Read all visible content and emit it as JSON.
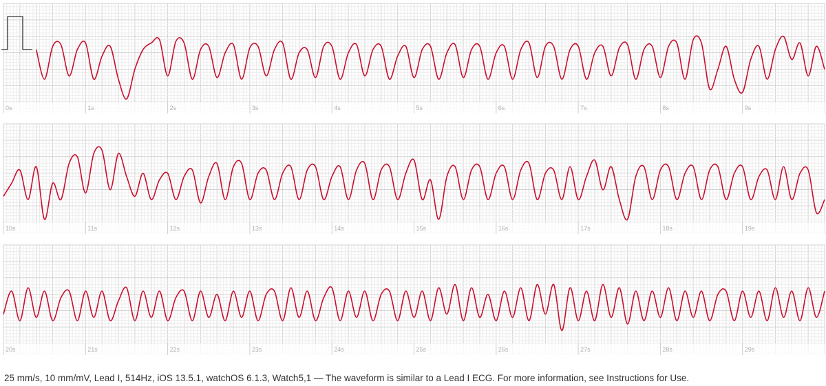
{
  "chart_data": [
    {
      "type": "line",
      "xlim": [
        0,
        10
      ],
      "ylim": [
        -1.9,
        1.4
      ],
      "color": "#c8102e",
      "xticks": [
        {
          "value": 0,
          "label": "0s"
        },
        {
          "value": 1,
          "label": "1s"
        },
        {
          "value": 2,
          "label": "2s"
        },
        {
          "value": 3,
          "label": "3s"
        },
        {
          "value": 4,
          "label": "4s"
        },
        {
          "value": 5,
          "label": "5s"
        },
        {
          "value": 6,
          "label": "6s"
        },
        {
          "value": 7,
          "label": "7s"
        },
        {
          "value": 8,
          "label": "8s"
        },
        {
          "value": 9,
          "label": "9s"
        }
      ],
      "values": [
        null,
        null,
        null,
        null,
        0.0,
        -0.9,
        0.1,
        0.15,
        -0.8,
        0.0,
        0.2,
        -0.9,
        -0.2,
        0.1,
        -0.9,
        -1.5,
        -0.6,
        0.0,
        0.2,
        0.3,
        -0.8,
        0.25,
        0.2,
        -0.9,
        0.0,
        0.1,
        -0.85,
        -0.1,
        0.15,
        -0.9,
        0.05,
        0.1,
        -0.8,
        0.0,
        0.2,
        -0.9,
        -0.1,
        0.0,
        -0.85,
        0.1,
        0.1,
        -0.9,
        -0.1,
        0.15,
        -0.8,
        0.0,
        0.1,
        -0.9,
        -0.2,
        0.1,
        -0.85,
        0.0,
        0.1,
        -0.9,
        -0.1,
        0.15,
        -0.85,
        0.0,
        0.1,
        -0.9,
        -0.1,
        0.1,
        -0.9,
        0.0,
        0.2,
        -0.85,
        0.1,
        0.1,
        -0.9,
        0.0,
        0.1,
        -0.9,
        -0.1,
        0.1,
        -0.8,
        0.05,
        0.15,
        -0.9,
        0.0,
        0.1,
        -0.85,
        0.1,
        0.2,
        -0.9,
        0.3,
        0.2,
        -1.2,
        -0.6,
        0.1,
        -0.9,
        -1.3,
        -0.3,
        0.1,
        -0.9,
        0.0,
        0.4,
        -0.3,
        0.2,
        -0.8,
        0.1,
        -0.6
      ]
    },
    {
      "type": "line",
      "xlim": [
        10,
        20
      ],
      "ylim": [
        -1.9,
        1.4
      ],
      "color": "#c8102e",
      "xticks": [
        {
          "value": 10,
          "label": "10s"
        },
        {
          "value": 11,
          "label": "11s"
        },
        {
          "value": 12,
          "label": "12s"
        },
        {
          "value": 13,
          "label": "13s"
        },
        {
          "value": 14,
          "label": "14s"
        },
        {
          "value": 15,
          "label": "15s"
        },
        {
          "value": 16,
          "label": "16s"
        },
        {
          "value": 17,
          "label": "17s"
        },
        {
          "value": 18,
          "label": "18s"
        },
        {
          "value": 19,
          "label": "19s"
        }
      ],
      "values": [
        -0.8,
        -0.4,
        0.0,
        -0.9,
        0.1,
        -1.5,
        -0.4,
        -0.9,
        0.2,
        0.4,
        -0.7,
        0.5,
        0.6,
        -0.6,
        0.5,
        -0.2,
        -0.8,
        -0.1,
        -0.9,
        -0.3,
        -0.1,
        -0.9,
        -0.2,
        0.0,
        -1.0,
        -0.2,
        0.2,
        -0.9,
        0.1,
        0.2,
        -0.9,
        -0.1,
        0.0,
        -0.9,
        -0.1,
        0.1,
        -0.9,
        0.0,
        0.1,
        -0.9,
        -0.2,
        0.1,
        -0.9,
        0.0,
        0.2,
        -0.9,
        0.0,
        0.1,
        -0.9,
        -0.1,
        0.3,
        -0.9,
        -0.3,
        -1.5,
        -0.2,
        0.1,
        -0.9,
        0.0,
        0.1,
        -0.9,
        -0.1,
        0.1,
        -0.9,
        0.0,
        0.2,
        -0.9,
        -0.1,
        0.0,
        -0.9,
        0.1,
        -0.9,
        -0.2,
        0.3,
        -0.6,
        0.1,
        -0.9,
        -1.5,
        -0.2,
        0.1,
        -0.9,
        0.0,
        0.1,
        -0.9,
        -0.1,
        0.1,
        -0.9,
        0.0,
        0.1,
        -0.9,
        -0.1,
        0.1,
        -0.9,
        -0.2,
        0.0,
        -0.9,
        0.1,
        -0.9,
        -0.1,
        0.0,
        -1.3,
        -0.9
      ]
    },
    {
      "type": "line",
      "xlim": [
        20,
        30
      ],
      "ylim": [
        -1.9,
        1.4
      ],
      "color": "#c8102e",
      "xticks": [
        {
          "value": 20,
          "label": "20s"
        },
        {
          "value": 21,
          "label": "21s"
        },
        {
          "value": 22,
          "label": "22s"
        },
        {
          "value": 23,
          "label": "23s"
        },
        {
          "value": 24,
          "label": "24s"
        },
        {
          "value": 25,
          "label": "25s"
        },
        {
          "value": 26,
          "label": "26s"
        },
        {
          "value": 27,
          "label": "27s"
        },
        {
          "value": 28,
          "label": "28s"
        },
        {
          "value": 29,
          "label": "29s"
        }
      ],
      "values": [
        -0.7,
        0.0,
        -0.9,
        0.1,
        -0.8,
        0.0,
        -0.9,
        -0.2,
        0.0,
        -0.9,
        0.0,
        -0.8,
        0.0,
        -0.9,
        -0.3,
        0.1,
        -0.9,
        0.0,
        -0.8,
        0.0,
        -0.9,
        -0.2,
        0.0,
        -0.9,
        0.0,
        -0.8,
        -0.1,
        -0.9,
        0.0,
        -0.8,
        0.0,
        -0.9,
        -0.1,
        0.0,
        -0.9,
        0.1,
        -0.8,
        0.0,
        -0.9,
        -0.2,
        0.1,
        -0.9,
        0.0,
        -0.8,
        0.0,
        -0.9,
        -0.1,
        0.0,
        -0.9,
        0.0,
        -0.8,
        0.0,
        -0.9,
        0.1,
        -0.7,
        0.2,
        -0.9,
        0.1,
        -0.8,
        -0.1,
        -0.9,
        0.0,
        -0.8,
        0.1,
        -0.9,
        0.2,
        -0.7,
        0.2,
        -1.2,
        0.1,
        -0.9,
        0.0,
        -0.9,
        0.2,
        -0.8,
        0.1,
        -1.0,
        0.0,
        -0.9,
        0.0,
        -0.8,
        0.1,
        -0.9,
        0.0,
        -0.8,
        0.0,
        -0.9,
        -0.1,
        0.0,
        -0.9,
        0.0,
        -0.8,
        0.0,
        -0.9,
        0.1,
        -0.8,
        0.0,
        -0.9,
        0.1,
        -0.8,
        0.0
      ]
    }
  ],
  "footer": "25 mm/s, 10 mm/mV, Lead I, 514Hz, iOS 13.5.1, watchOS 6.1.3, Watch5,1 — The waveform is similar to a Lead I ECG. For more information, see Instructions for Use."
}
